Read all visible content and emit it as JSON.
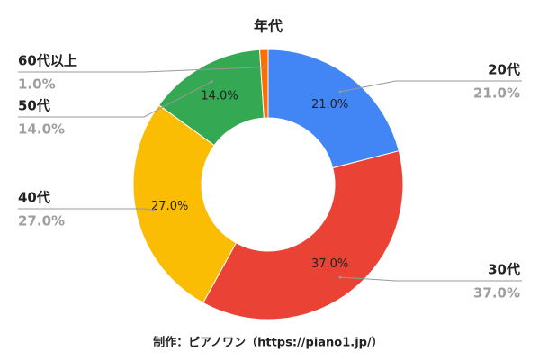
{
  "chart_data": {
    "type": "donut",
    "title": "年代",
    "categories": [
      "20代",
      "30代",
      "40代",
      "50代",
      "60代以上"
    ],
    "values": [
      21.0,
      37.0,
      27.0,
      14.0,
      1.0
    ],
    "value_labels": [
      "21.0%",
      "37.0%",
      "27.0%",
      "14.0%",
      "1.0%"
    ],
    "colors": [
      "#4285f4",
      "#ea4335",
      "#fbbc04",
      "#34a853",
      "#ff6d01"
    ],
    "source": "制作：ピアノワン（https://piano1.jp/）"
  }
}
